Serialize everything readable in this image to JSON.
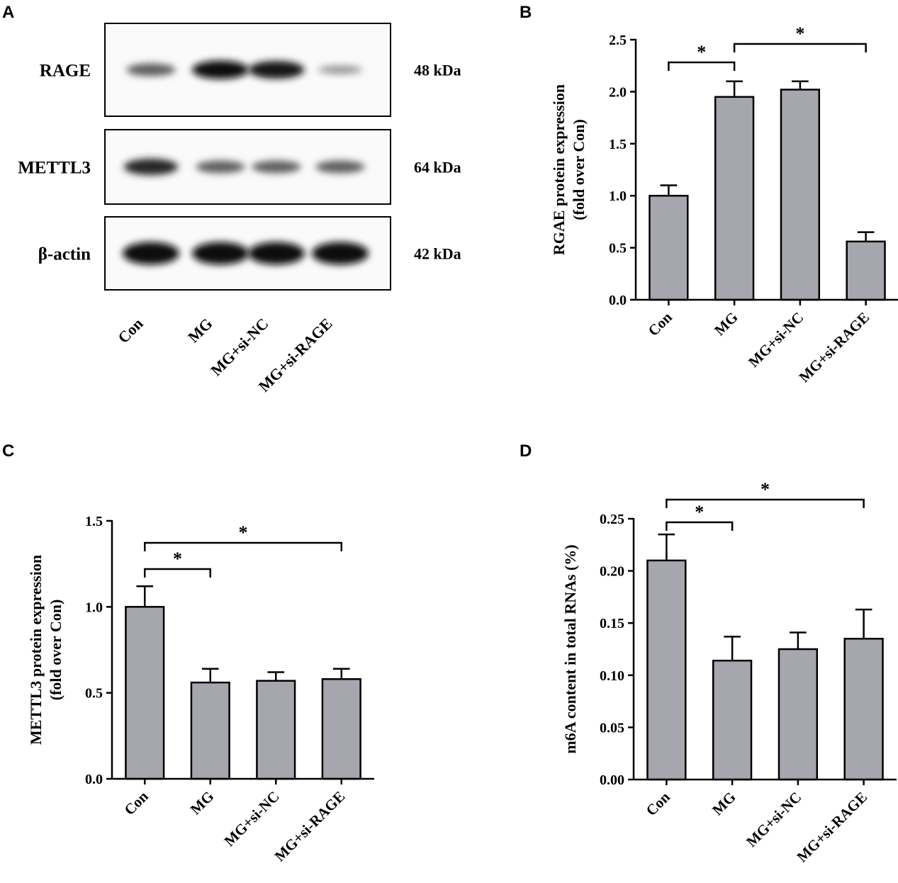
{
  "panels": {
    "a": "A",
    "b": "B",
    "c": "C",
    "d": "D"
  },
  "blot": {
    "rows": [
      {
        "label": "RAGE",
        "size": "48 kDa",
        "intensities": [
          0.55,
          1.0,
          0.95,
          0.25
        ]
      },
      {
        "label": "METTL3",
        "size": "64 kDa",
        "intensities": [
          0.85,
          0.55,
          0.55,
          0.55
        ]
      },
      {
        "label": "β-actin",
        "size": "42 kDa",
        "intensities": [
          1.0,
          1.0,
          1.0,
          1.0
        ]
      }
    ],
    "lanes": [
      "Con",
      "MG",
      "MG+si-NC",
      "MG+si-RAGE"
    ]
  },
  "chart_data": [
    {
      "panel": "B",
      "type": "bar",
      "categories": [
        "Con",
        "MG",
        "MG+si-NC",
        "MG+si-RAGE"
      ],
      "values": [
        1.0,
        1.95,
        2.02,
        0.56
      ],
      "errors": [
        0.1,
        0.15,
        0.08,
        0.09
      ],
      "ylabel": [
        "RGAE protein expression",
        "(fold over Con)"
      ],
      "ylim": [
        0,
        2.5
      ],
      "yticks": [
        "0.0",
        "0.5",
        "1.0",
        "1.5",
        "2.0",
        "2.5"
      ],
      "significance": [
        {
          "from": 0,
          "to": 1,
          "label": "*"
        },
        {
          "from": 1,
          "to": 3,
          "label": "*"
        }
      ],
      "bar_color": "#a6a6ae"
    },
    {
      "panel": "C",
      "type": "bar",
      "categories": [
        "Con",
        "MG",
        "MG+si-NC",
        "MG+si-RAGE"
      ],
      "values": [
        1.0,
        0.56,
        0.57,
        0.58
      ],
      "errors": [
        0.12,
        0.08,
        0.05,
        0.06
      ],
      "ylabel": [
        "METTL3 protein expression",
        "(fold over Con)"
      ],
      "ylim": [
        0,
        1.5
      ],
      "yticks": [
        "0.0",
        "0.5",
        "1.0",
        "1.5"
      ],
      "significance": [
        {
          "from": 0,
          "to": 1,
          "label": "*"
        },
        {
          "from": 0,
          "to": 3,
          "label": "*"
        }
      ],
      "bar_color": "#a6a6ae"
    },
    {
      "panel": "D",
      "type": "bar",
      "categories": [
        "Con",
        "MG",
        "MG+si-NC",
        "MG+si-RAGE"
      ],
      "values": [
        0.21,
        0.114,
        0.125,
        0.135
      ],
      "errors": [
        0.025,
        0.023,
        0.016,
        0.028
      ],
      "ylabel": [
        "m6A content in total RNAs (%)"
      ],
      "ylim": [
        0,
        0.25
      ],
      "yticks": [
        "0.00",
        "0.05",
        "0.10",
        "0.15",
        "0.20",
        "0.25"
      ],
      "significance": [
        {
          "from": 0,
          "to": 1,
          "label": "*"
        },
        {
          "from": 0,
          "to": 3,
          "label": "*"
        }
      ],
      "bar_color": "#a6a6ae"
    }
  ]
}
